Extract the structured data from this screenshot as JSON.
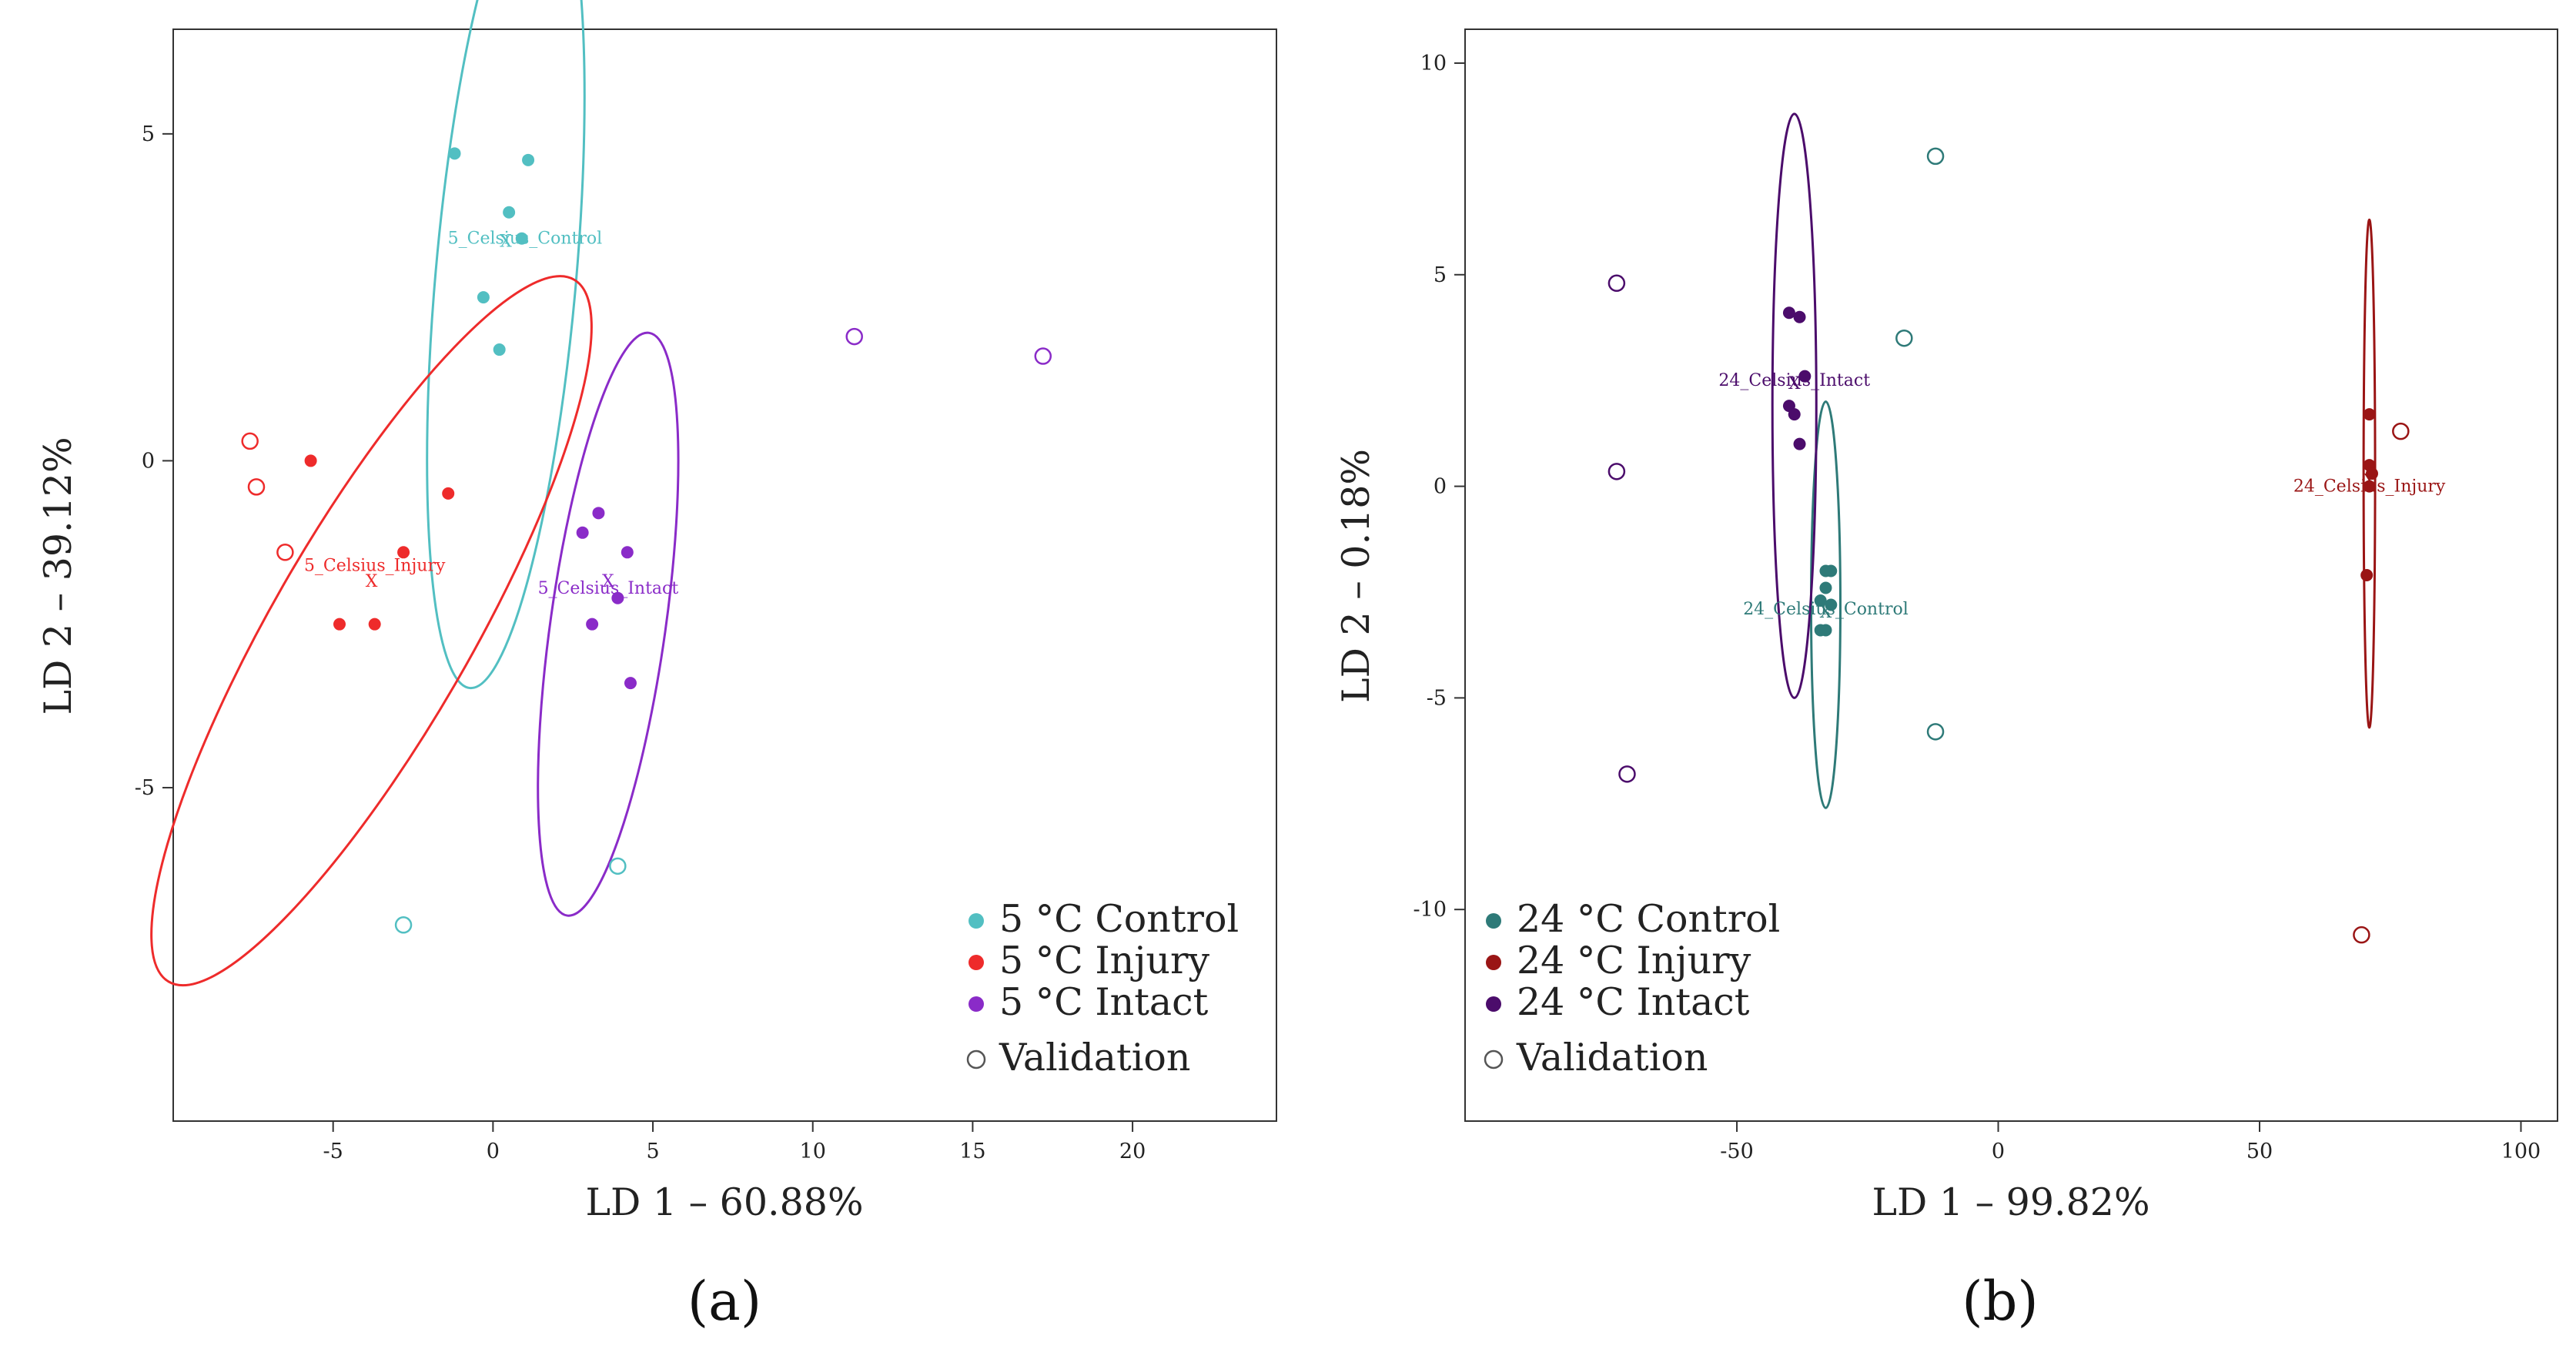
{
  "chart_data": [
    {
      "type": "scatter",
      "panel_label": "(a)",
      "title": "",
      "xlabel": "LD 1 – 60.88%",
      "ylabel": "LD 2 – 39.12%",
      "xlim": [
        -10,
        24.5
      ],
      "ylim": [
        -10.1,
        6.6
      ],
      "xticks": [
        -5,
        0,
        5,
        10,
        15,
        20
      ],
      "yticks": [
        -5,
        0,
        5
      ],
      "grid": false,
      "legend_position": "bottom-right",
      "legend": [
        {
          "label": "5 °C Control",
          "color": "#52BFC2",
          "marker": "filled"
        },
        {
          "label": "5 °C Injury",
          "color": "#EE2B2B",
          "marker": "filled"
        },
        {
          "label": "5 °C Intact",
          "color": "#8A2BC8",
          "marker": "filled"
        },
        {
          "label": "Validation",
          "color": "#555555",
          "marker": "open"
        }
      ],
      "series": [
        {
          "name": "5_Celsius_Control",
          "color": "#52BFC2",
          "points": [
            [
              -1.2,
              4.7
            ],
            [
              1.1,
              4.6
            ],
            [
              0.5,
              3.8
            ],
            [
              0.9,
              3.4
            ],
            [
              -0.3,
              2.5
            ],
            [
              0.2,
              1.7
            ]
          ],
          "validation": [
            [
              -2.8,
              -7.1
            ],
            [
              3.9,
              -6.2
            ]
          ],
          "centroid": [
            0.4,
            3.4
          ],
          "ellipse": {
            "cx": 0.4,
            "cy": 2.8,
            "rx": 2.2,
            "ry": 6.3,
            "angle": 5
          },
          "label_pos": [
            1.0,
            3.4
          ]
        },
        {
          "name": "5_Celsius_Injury",
          "color": "#EE2B2B",
          "points": [
            [
              -5.7,
              0.0
            ],
            [
              -1.4,
              -0.5
            ],
            [
              -2.8,
              -1.4
            ],
            [
              -4.8,
              -2.5
            ],
            [
              -3.7,
              -2.5
            ]
          ],
          "validation": [
            [
              -7.6,
              0.3
            ],
            [
              -7.4,
              -0.4
            ],
            [
              -6.5,
              -1.4
            ]
          ],
          "centroid": [
            -3.8,
            -1.8
          ],
          "ellipse": {
            "cx": -3.8,
            "cy": -2.6,
            "rx": 3.1,
            "ry": 6.2,
            "angle": 30
          },
          "label_pos": [
            -3.7,
            -1.6
          ]
        },
        {
          "name": "5_Celsius_Intact",
          "color": "#8A2BC8",
          "points": [
            [
              3.3,
              -0.8
            ],
            [
              2.8,
              -1.1
            ],
            [
              4.2,
              -1.4
            ],
            [
              3.9,
              -2.1
            ],
            [
              3.1,
              -2.5
            ],
            [
              4.3,
              -3.4
            ]
          ],
          "validation": [
            [
              11.3,
              1.9
            ],
            [
              17.2,
              1.6
            ]
          ],
          "centroid": [
            3.6,
            -1.8
          ],
          "ellipse": {
            "cx": 3.6,
            "cy": -2.5,
            "rx": 1.8,
            "ry": 4.5,
            "angle": 8
          },
          "label_pos": [
            3.6,
            -1.95
          ]
        }
      ]
    },
    {
      "type": "scatter",
      "panel_label": "(b)",
      "title": "",
      "xlabel": "LD 1 – 99.82%",
      "ylabel": "LD 2 – 0.18%",
      "xlim": [
        -102,
        107
      ],
      "ylim": [
        -15,
        10.8
      ],
      "xticks": [
        -50,
        0,
        50,
        100
      ],
      "yticks": [
        -10,
        -5,
        0,
        5,
        10
      ],
      "grid": false,
      "legend_position": "bottom-left",
      "legend": [
        {
          "label": "24 °C Control",
          "color": "#2E7A78",
          "marker": "filled"
        },
        {
          "label": "24 °C Injury",
          "color": "#9A1515",
          "marker": "filled"
        },
        {
          "label": "24 °C Intact",
          "color": "#4B0C6B",
          "marker": "filled"
        },
        {
          "label": "Validation",
          "color": "#555555",
          "marker": "open"
        }
      ],
      "series": [
        {
          "name": "24_Celsius_Control",
          "color": "#2E7A78",
          "points": [
            [
              -32,
              -2.0
            ],
            [
              -33,
              -2.0
            ],
            [
              -33,
              -2.4
            ],
            [
              -34,
              -2.7
            ],
            [
              -32,
              -2.8
            ],
            [
              -33,
              -3.4
            ],
            [
              -34,
              -3.4
            ]
          ],
          "validation": [
            [
              -12,
              7.8
            ],
            [
              -18,
              3.5
            ],
            [
              -12,
              -5.8
            ]
          ],
          "centroid": [
            -33,
            -2.9
          ],
          "ellipse": {
            "cx": -33,
            "cy": -2.8,
            "rx": 2.8,
            "ry": 4.8,
            "angle": 0
          },
          "label_pos": [
            -33,
            -2.9
          ]
        },
        {
          "name": "24_Celsius_Injury",
          "color": "#9A1515",
          "points": [
            [
              71,
              1.7
            ],
            [
              71,
              0.5
            ],
            [
              71.5,
              0.3
            ],
            [
              71,
              0.0
            ],
            [
              70.5,
              -2.1
            ]
          ],
          "validation": [
            [
              77,
              1.3
            ],
            [
              69.5,
              -10.6
            ]
          ],
          "centroid": [
            71,
            0.2
          ],
          "ellipse": {
            "cx": 71,
            "cy": 0.3,
            "rx": 1.1,
            "ry": 6.0,
            "angle": 0
          },
          "label_pos": [
            71,
            0.0
          ]
        },
        {
          "name": "24_Celsius_Intact",
          "color": "#4B0C6B",
          "points": [
            [
              -40,
              4.1
            ],
            [
              -38,
              4.0
            ],
            [
              -37,
              2.6
            ],
            [
              -40,
              1.9
            ],
            [
              -39,
              1.7
            ],
            [
              -38,
              1.0
            ]
          ],
          "validation": [
            [
              -73,
              4.8
            ],
            [
              -73,
              0.35
            ],
            [
              -71,
              -6.8
            ]
          ],
          "centroid": [
            -39,
            2.5
          ],
          "ellipse": {
            "cx": -39,
            "cy": 1.9,
            "rx": 4.2,
            "ry": 6.9,
            "angle": 0
          },
          "label_pos": [
            -39,
            2.5
          ]
        }
      ]
    }
  ]
}
